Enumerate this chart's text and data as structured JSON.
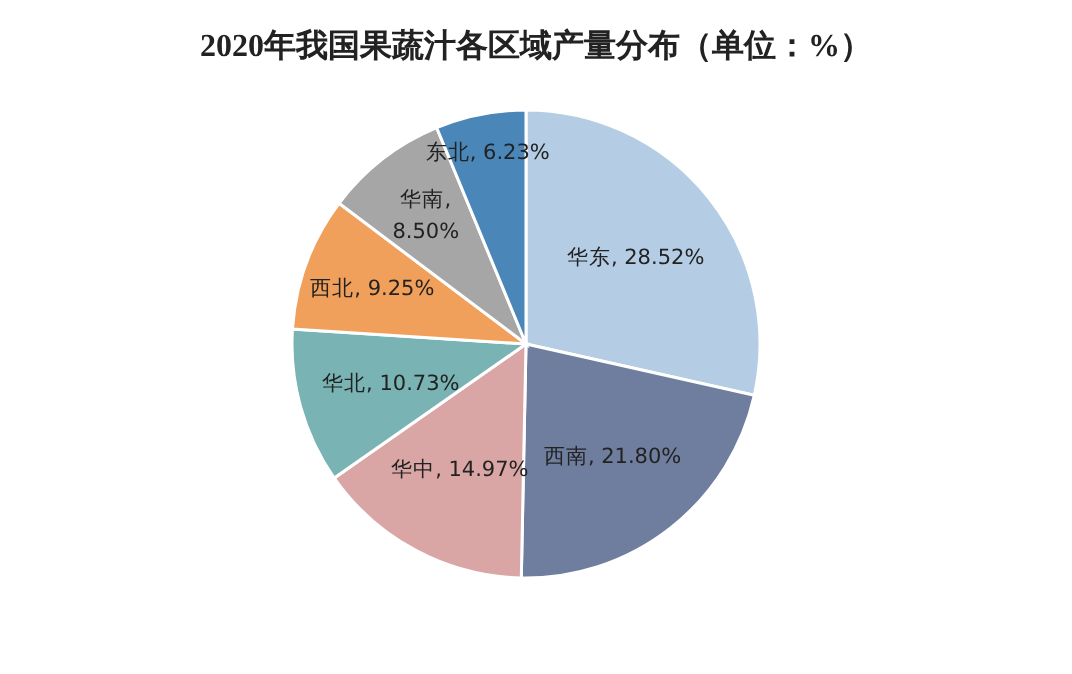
{
  "chart_data": {
    "type": "pie",
    "title": "2020年我国果蔬汁各区域产量分布（单位：%）",
    "categories": [
      "华东",
      "西南",
      "华中",
      "华北",
      "西北",
      "华南",
      "东北"
    ],
    "values": [
      28.52,
      21.8,
      14.97,
      10.73,
      9.25,
      8.5,
      6.23
    ],
    "value_labels": [
      ", 28.52%",
      ", 21.80%",
      ", 14.97%",
      ", 10.73%",
      ", 9.25%",
      ", 8.50%",
      ", 6.23%"
    ],
    "colors": [
      "#b4cde4",
      "#6f7d9e",
      "#d9a6a5",
      "#7ab3b3",
      "#f0a05a",
      "#a6a6a6",
      "#4a86b8"
    ],
    "data_labels": true
  }
}
